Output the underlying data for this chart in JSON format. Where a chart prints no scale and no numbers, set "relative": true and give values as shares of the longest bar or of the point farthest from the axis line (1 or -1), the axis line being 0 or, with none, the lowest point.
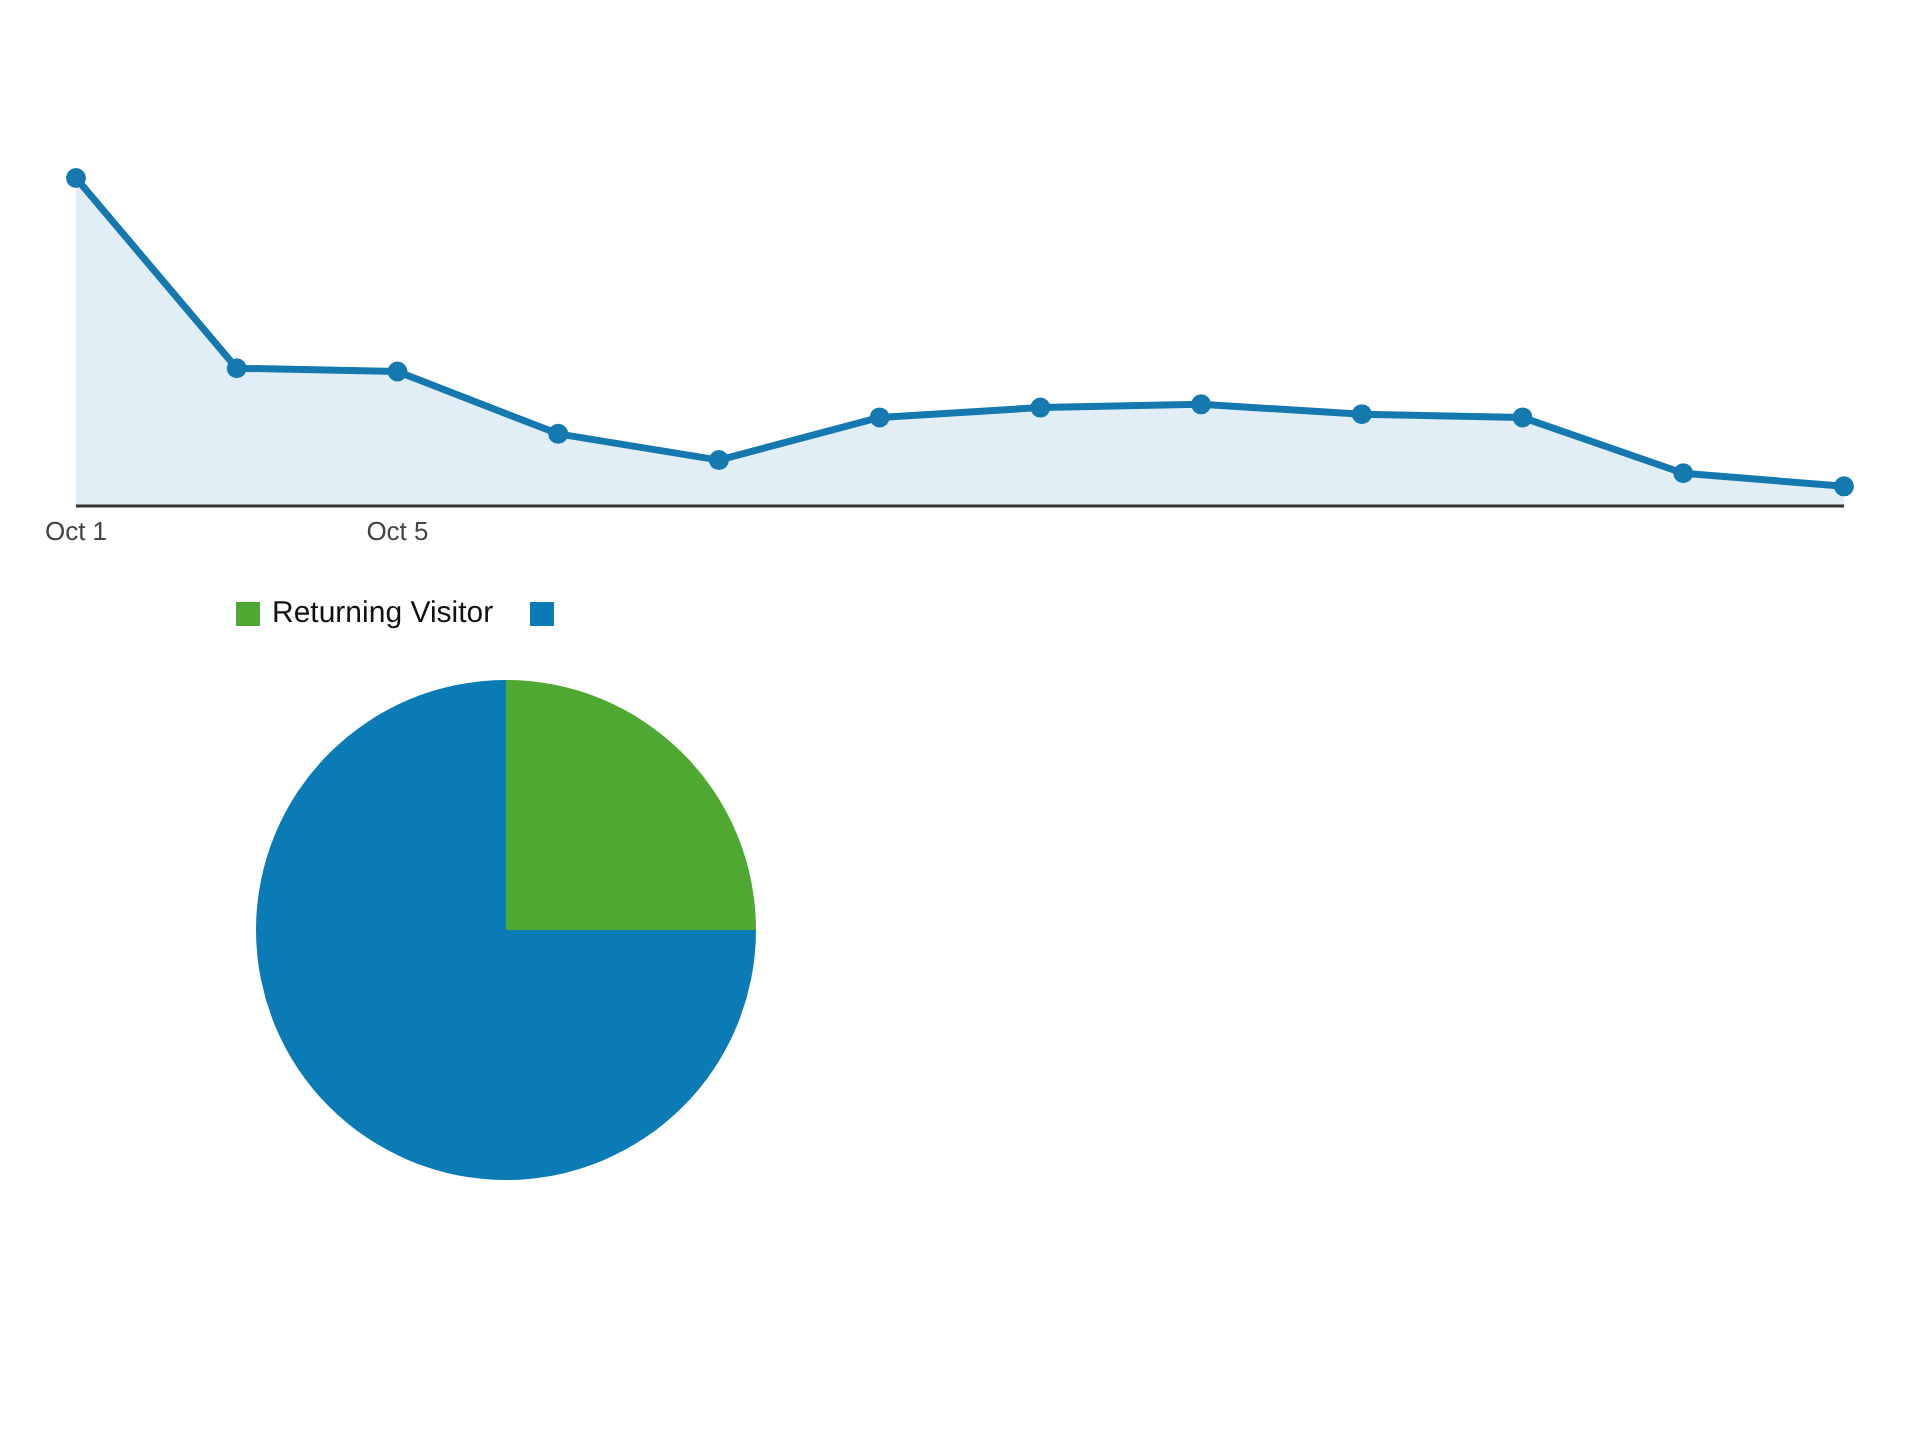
{
  "chart_data": [
    {
      "type": "area",
      "categories": [
        "Oct 1",
        null,
        "Oct 5",
        null,
        null,
        null,
        null,
        null,
        null,
        null,
        null,
        null
      ],
      "relative": true,
      "series": [
        {
          "color": "#1579b0",
          "values": [
            1,
            0.42,
            0.41,
            0.22,
            0.14,
            0.27,
            0.3,
            0.31,
            0.28,
            0.27,
            0.1,
            0.06
          ]
        }
      ],
      "marker": "circle",
      "line_style": "solid"
    },
    {
      "type": "pie",
      "categories": [
        null,
        "Returning Visitor"
      ],
      "values": [
        75,
        25
      ],
      "colors": [
        "#0b7bb5",
        "#4ea832"
      ],
      "legend": "top"
    }
  ]
}
